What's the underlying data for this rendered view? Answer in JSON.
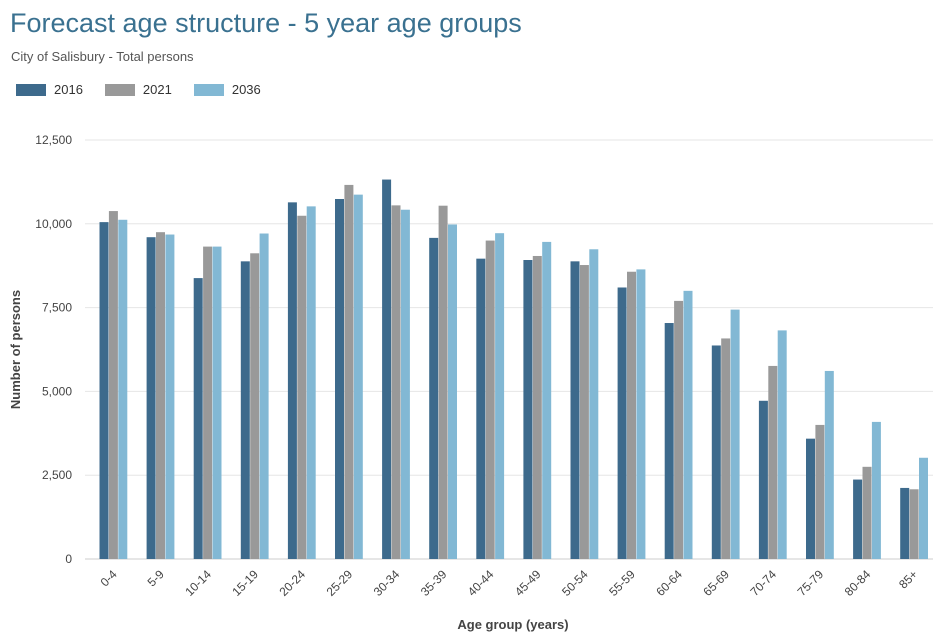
{
  "chart_data": {
    "type": "bar",
    "title": "Forecast age structure - 5 year age groups",
    "subtitle": "City of Salisbury - Total persons",
    "xlabel": "Age group (years)",
    "ylabel": "Number of persons",
    "ylim": [
      0,
      12500
    ],
    "yticks": [
      0,
      2500,
      5000,
      7500,
      10000,
      12500
    ],
    "ytick_labels": [
      "0",
      "2,500",
      "5,000",
      "7,500",
      "10,000",
      "12,500"
    ],
    "grid": true,
    "legend_position": "top-left",
    "categories": [
      "0-4",
      "5-9",
      "10-14",
      "15-19",
      "20-24",
      "25-29",
      "30-34",
      "35-39",
      "40-44",
      "45-49",
      "50-54",
      "55-59",
      "60-64",
      "65-69",
      "70-74",
      "75-79",
      "80-84",
      "85+"
    ],
    "series": [
      {
        "name": "2016",
        "color": "#3d6a8c",
        "values": [
          10050,
          9600,
          8380,
          8880,
          10640,
          10740,
          11320,
          9580,
          8960,
          8920,
          8880,
          8100,
          7040,
          6370,
          4720,
          3590,
          2370,
          2120
        ]
      },
      {
        "name": "2021",
        "color": "#999999",
        "values": [
          10380,
          9750,
          9320,
          9120,
          10240,
          11160,
          10550,
          10540,
          9500,
          9040,
          8770,
          8570,
          7700,
          6580,
          5760,
          4000,
          2750,
          2080
        ]
      },
      {
        "name": "2036",
        "color": "#82b8d4",
        "values": [
          10120,
          9680,
          9320,
          9710,
          10520,
          10870,
          10420,
          9980,
          9720,
          9460,
          9240,
          8640,
          8000,
          7440,
          6820,
          5610,
          4090,
          3020
        ]
      }
    ]
  }
}
